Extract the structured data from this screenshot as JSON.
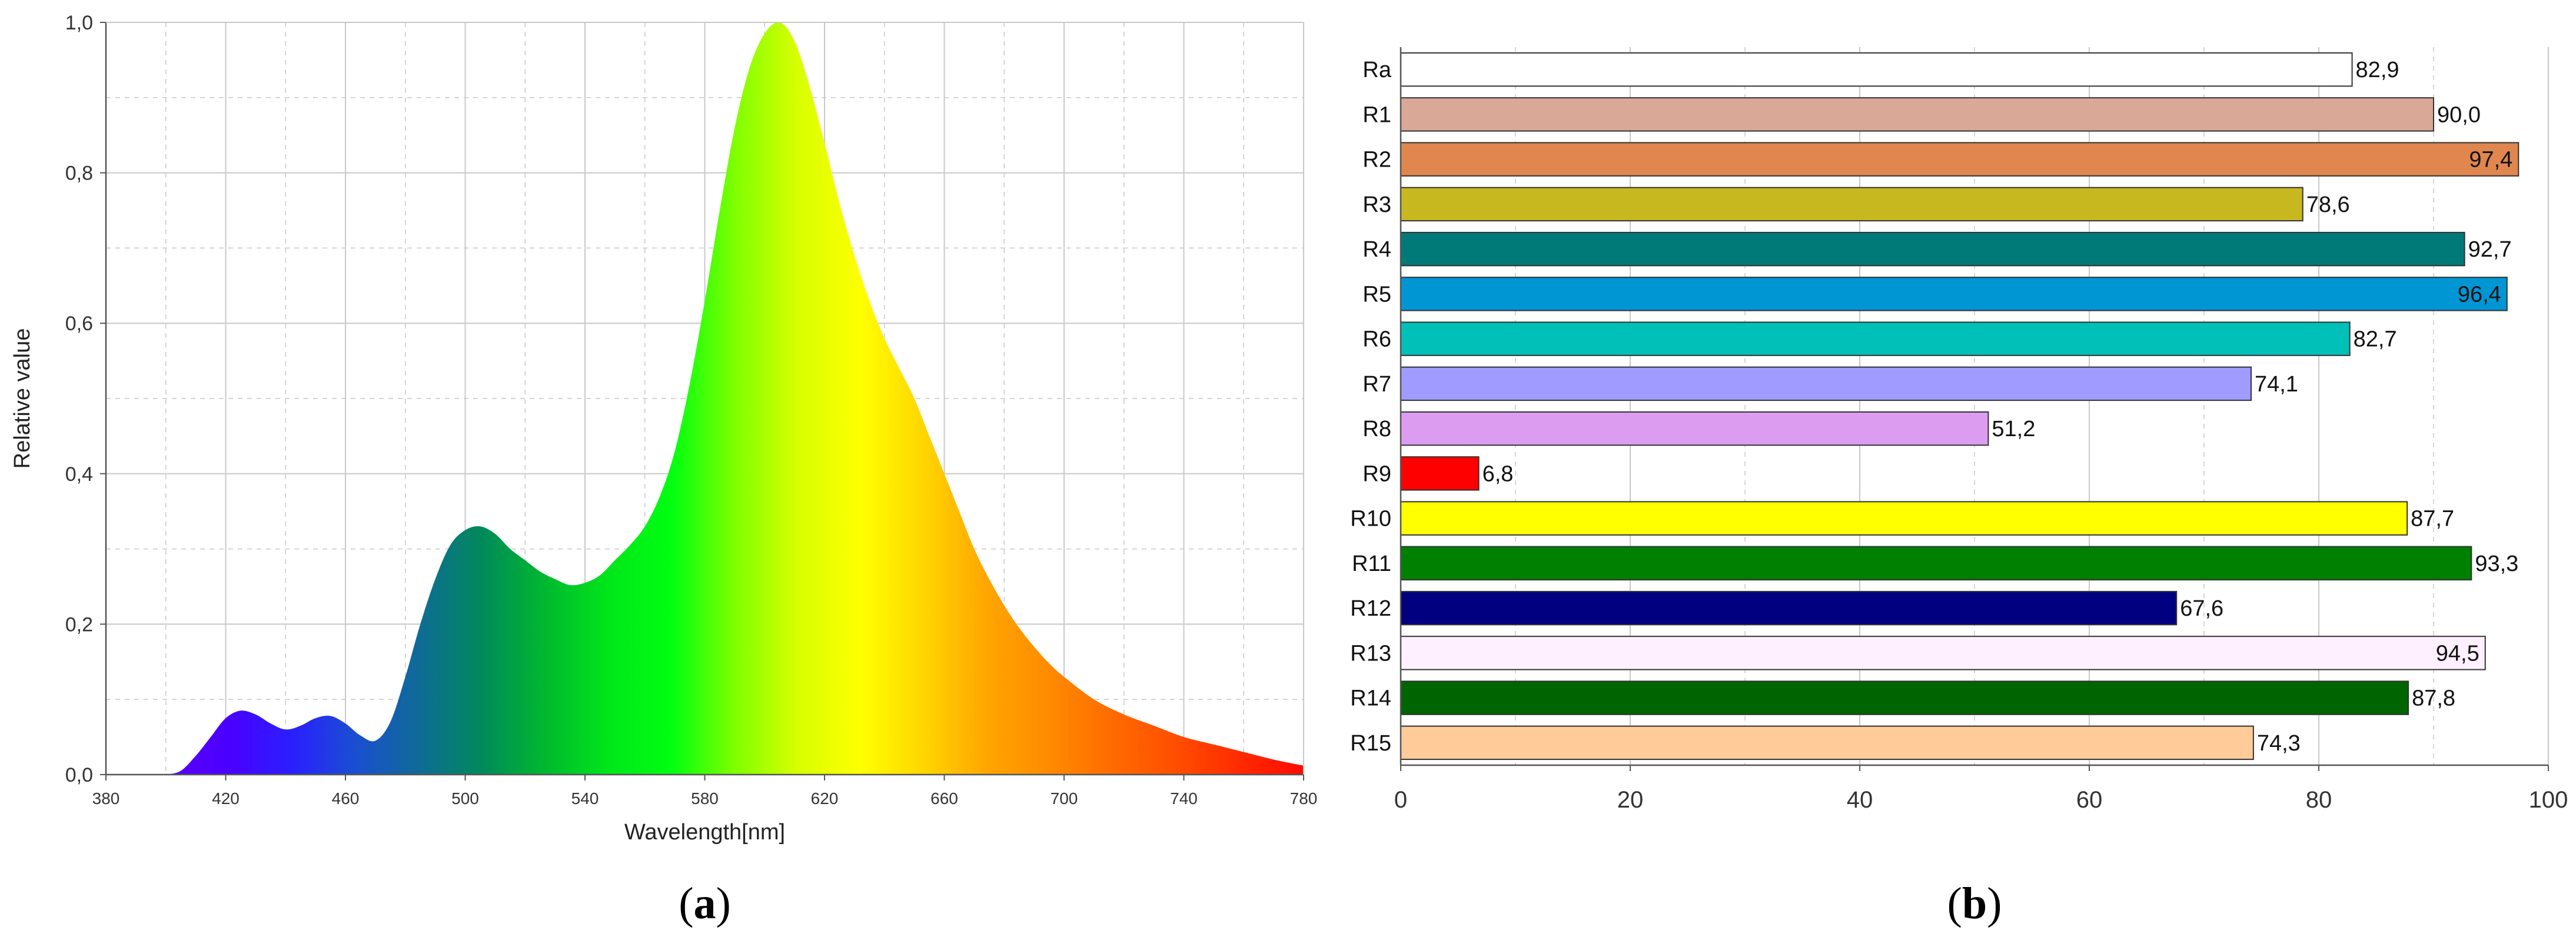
{
  "panel_a": {
    "label_open": "(",
    "label_letter": "a",
    "label_close": ")"
  },
  "panel_b": {
    "label_open": "(",
    "label_letter": "b",
    "label_close": ")"
  },
  "colors": {
    "grid": "#c8c8c8",
    "axis": "#555555",
    "bar_stroke": "#333333",
    "spectrum_stops": [
      "#5b00ff",
      "#4a00ff",
      "#2a1fff",
      "#1a4fd0",
      "#0f6b96",
      "#008a5a",
      "#00b82f",
      "#00e61a",
      "#00ff10",
      "#7fff00",
      "#d8ff00",
      "#ffff00",
      "#ffd500",
      "#ffa500",
      "#ff8a00",
      "#ff6a00",
      "#ff4d00",
      "#ff2a00",
      "#ff0a00"
    ]
  },
  "chart_data": [
    {
      "type": "area",
      "title": "",
      "xlabel": "Wavelength[nm]",
      "ylabel": "Relative value",
      "xlim": [
        380,
        780
      ],
      "ylim": [
        0,
        1
      ],
      "xticks": [
        "380",
        "420",
        "460",
        "500",
        "540",
        "580",
        "620",
        "660",
        "700",
        "740",
        "780"
      ],
      "yticks": [
        "0,0",
        "0,2",
        "0,4",
        "0,6",
        "0,8",
        "1,0"
      ],
      "grid": true,
      "series": [
        {
          "x": [
            400,
            405,
            410,
            415,
            420,
            425,
            430,
            435,
            440,
            445,
            450,
            455,
            460,
            465,
            470,
            475,
            480,
            485,
            490,
            495,
            500,
            505,
            510,
            515,
            520,
            525,
            530,
            535,
            540,
            545,
            550,
            555,
            560,
            565,
            570,
            575,
            580,
            585,
            590,
            595,
            600,
            605,
            610,
            615,
            620,
            625,
            630,
            635,
            640,
            645,
            650,
            655,
            660,
            665,
            670,
            675,
            680,
            685,
            690,
            695,
            700,
            710,
            720,
            730,
            740,
            750,
            760,
            770,
            780
          ],
          "y": [
            0.0,
            0.005,
            0.025,
            0.05,
            0.075,
            0.085,
            0.08,
            0.068,
            0.06,
            0.065,
            0.075,
            0.078,
            0.068,
            0.052,
            0.045,
            0.07,
            0.13,
            0.2,
            0.26,
            0.305,
            0.325,
            0.33,
            0.32,
            0.3,
            0.285,
            0.27,
            0.26,
            0.252,
            0.255,
            0.265,
            0.285,
            0.305,
            0.33,
            0.37,
            0.43,
            0.52,
            0.63,
            0.75,
            0.86,
            0.94,
            0.985,
            1.0,
            0.975,
            0.915,
            0.84,
            0.76,
            0.69,
            0.63,
            0.58,
            0.54,
            0.5,
            0.45,
            0.4,
            0.35,
            0.3,
            0.26,
            0.225,
            0.195,
            0.17,
            0.148,
            0.13,
            0.1,
            0.08,
            0.065,
            0.05,
            0.04,
            0.03,
            0.02,
            0.012
          ]
        }
      ]
    },
    {
      "type": "bar",
      "orientation": "horizontal",
      "title": "",
      "xlim": [
        0,
        100
      ],
      "xticks": [
        "0",
        "20",
        "40",
        "60",
        "80",
        "100"
      ],
      "grid": true,
      "categories": [
        "Ra",
        "R1",
        "R2",
        "R3",
        "R4",
        "R5",
        "R6",
        "R7",
        "R8",
        "R9",
        "R10",
        "R11",
        "R12",
        "R13",
        "R14",
        "R15"
      ],
      "values": [
        82.9,
        90.0,
        97.4,
        78.6,
        92.7,
        96.4,
        82.7,
        74.1,
        51.2,
        6.8,
        87.7,
        93.3,
        67.6,
        94.5,
        87.8,
        74.3
      ],
      "value_labels": [
        "82,9",
        "90,0",
        "97,4",
        "78,6",
        "92,7",
        "96,4",
        "82,7",
        "74,1",
        "51,2",
        "6,8",
        "87,7",
        "93,3",
        "67,6",
        "94,5",
        "87,8",
        "74,3"
      ],
      "bar_colors": [
        "#ffffff",
        "#d9a896",
        "#e0864f",
        "#c8b820",
        "#007a78",
        "#0096d4",
        "#00c0b8",
        "#a09cff",
        "#dc9cf0",
        "#ff0000",
        "#ffff00",
        "#008000",
        "#000080",
        "#fff0ff",
        "#006400",
        "#ffcc99"
      ]
    }
  ]
}
